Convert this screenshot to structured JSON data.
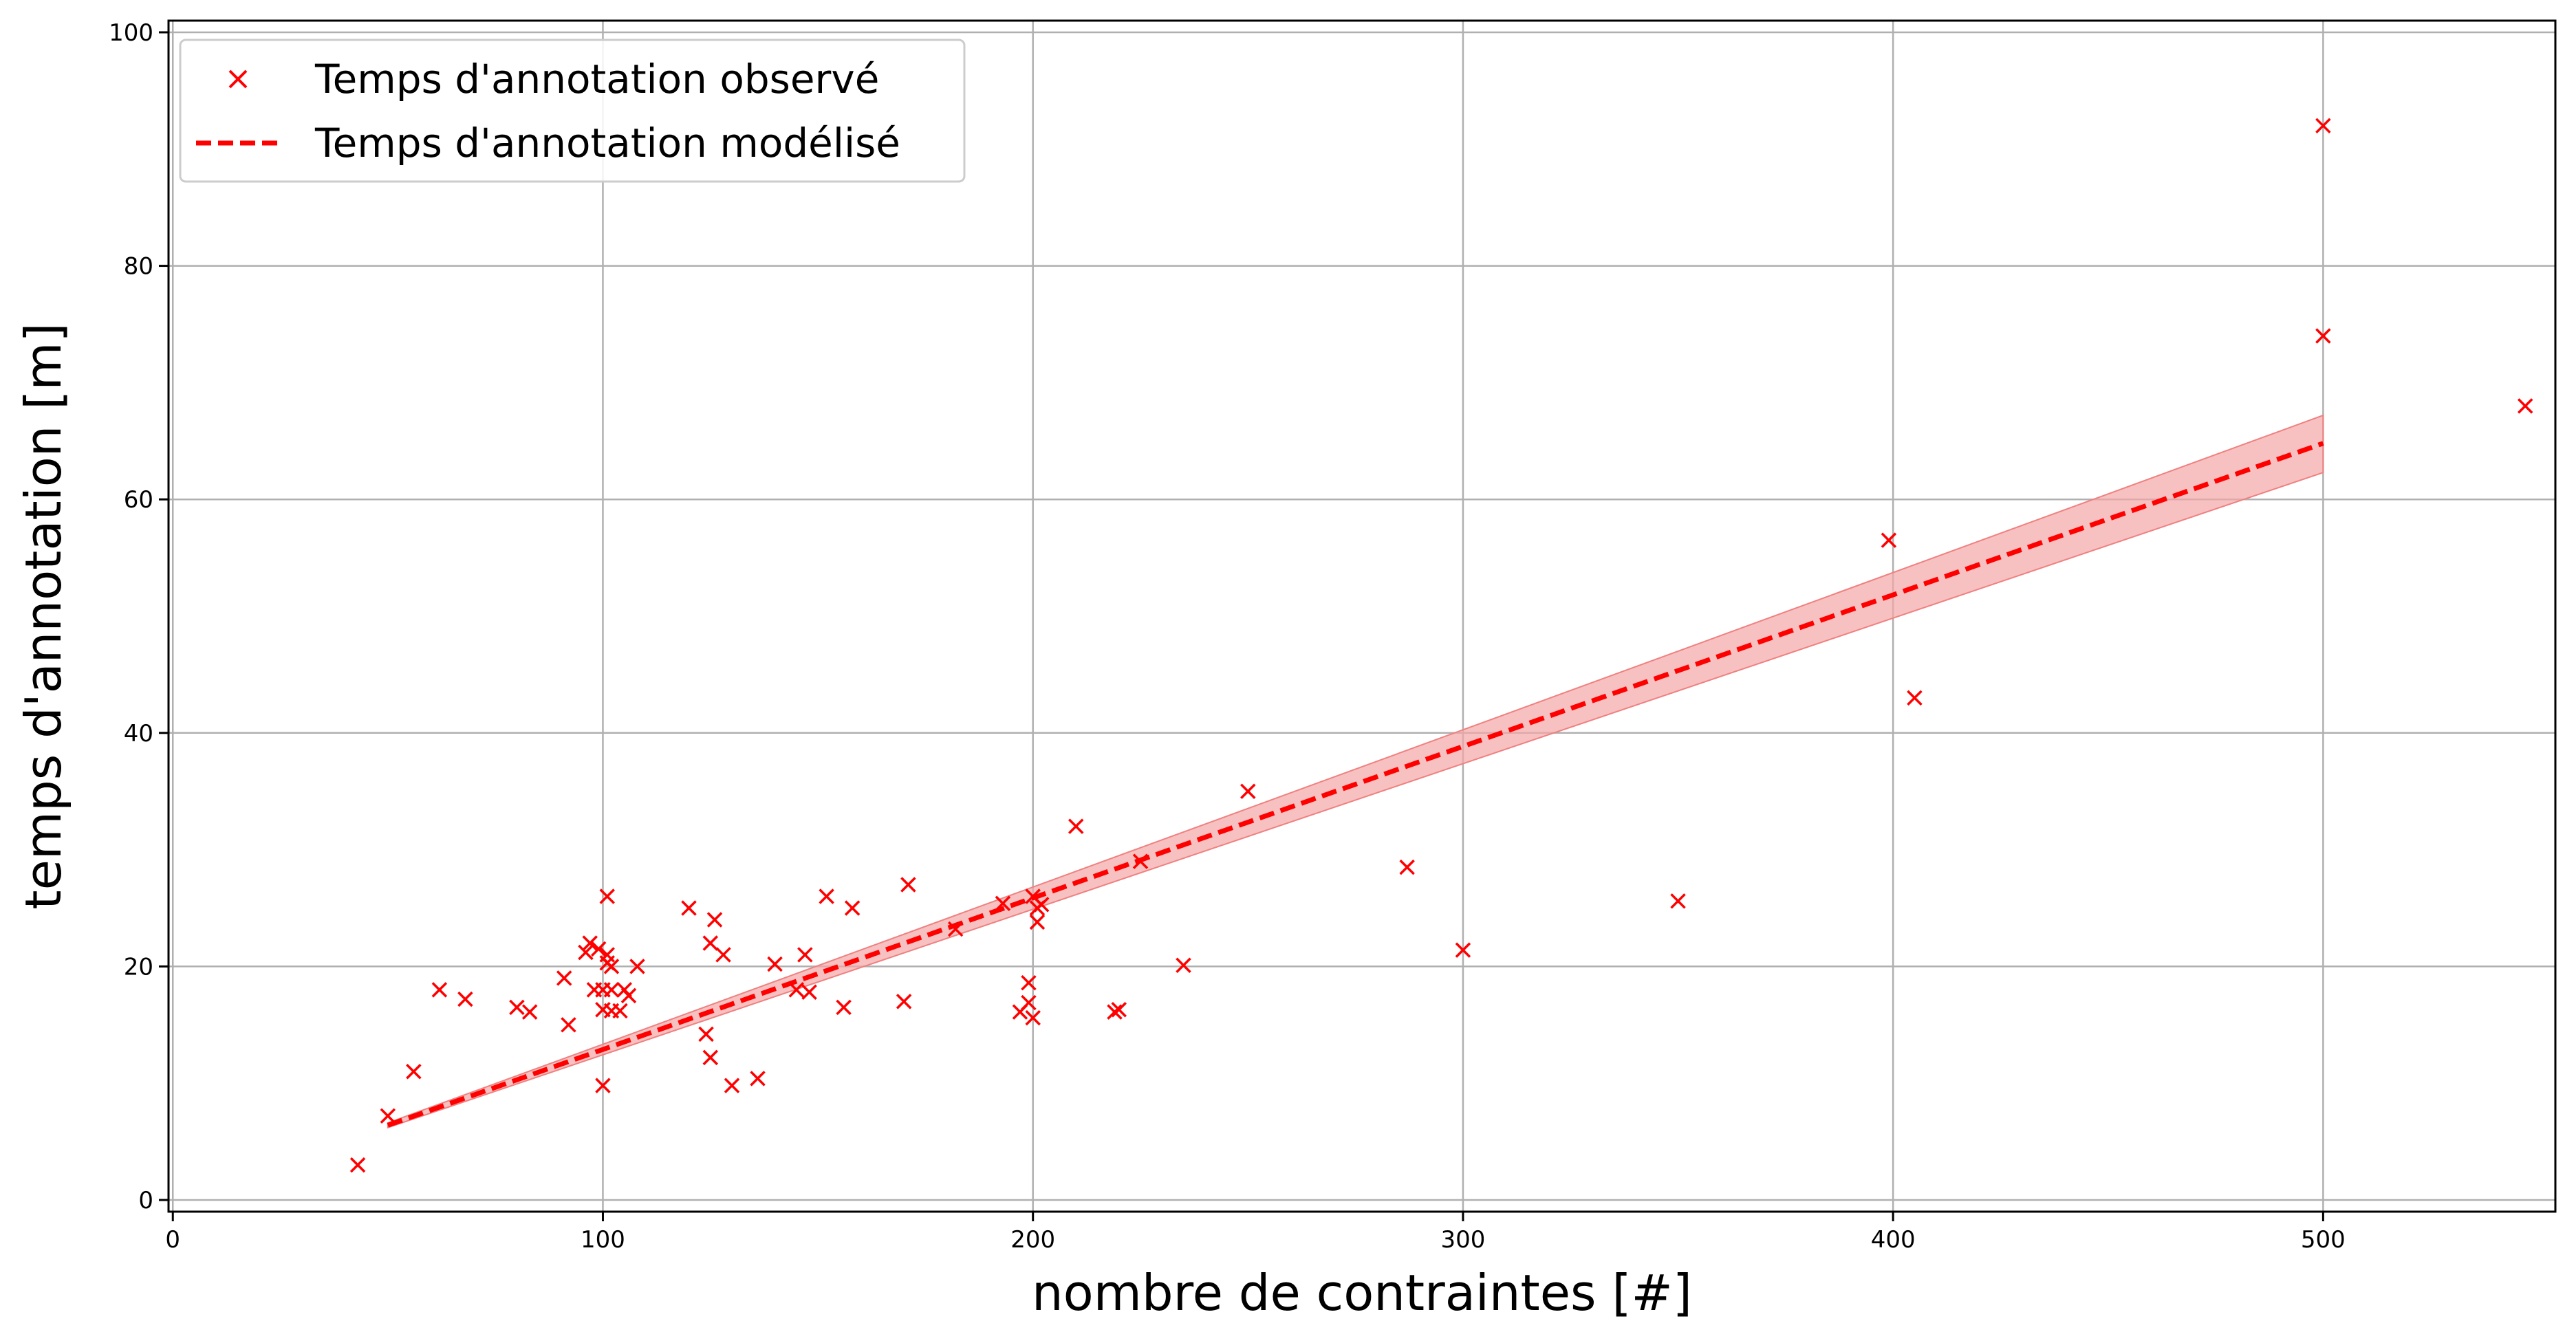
{
  "chart_data": {
    "type": "scatter",
    "xlabel": "nombre de contraintes [#]",
    "ylabel": "temps d'annotation [m]",
    "xlim": [
      -1,
      554
    ],
    "ylim": [
      -1,
      101
    ],
    "xticks": [
      0,
      100,
      200,
      300,
      400,
      500
    ],
    "yticks": [
      0,
      20,
      40,
      60,
      80,
      100
    ],
    "grid": true,
    "legend_position": "top-left",
    "series": [
      {
        "name": "Temps d'annotation observé",
        "kind": "scatter",
        "marker": "x",
        "color": "#ff0000",
        "points": [
          [
            43,
            3
          ],
          [
            50,
            7.2
          ],
          [
            56,
            11
          ],
          [
            62,
            18
          ],
          [
            68,
            17.2
          ],
          [
            80,
            16.5
          ],
          [
            83,
            16.1
          ],
          [
            91,
            19
          ],
          [
            92,
            15
          ],
          [
            96,
            21.2
          ],
          [
            97,
            22
          ],
          [
            98,
            18
          ],
          [
            99,
            21.5
          ],
          [
            100,
            9.8
          ],
          [
            100,
            16.3
          ],
          [
            100,
            18
          ],
          [
            101,
            26
          ],
          [
            101,
            21
          ],
          [
            101,
            20.3
          ],
          [
            102,
            16.2
          ],
          [
            102,
            20
          ],
          [
            102,
            18
          ],
          [
            104,
            16.2
          ],
          [
            105,
            18
          ],
          [
            106,
            17.5
          ],
          [
            108,
            20
          ],
          [
            120,
            25
          ],
          [
            124,
            14.2
          ],
          [
            125,
            22
          ],
          [
            125,
            12.2
          ],
          [
            126,
            24
          ],
          [
            128,
            21
          ],
          [
            130,
            9.8
          ],
          [
            136,
            10.4
          ],
          [
            140,
            20.2
          ],
          [
            145,
            18
          ],
          [
            147,
            21
          ],
          [
            148,
            17.8
          ],
          [
            152,
            26
          ],
          [
            156,
            16.5
          ],
          [
            158,
            25
          ],
          [
            170,
            17
          ],
          [
            171,
            27
          ],
          [
            182,
            23.2
          ],
          [
            193,
            25.4
          ],
          [
            197,
            16.1
          ],
          [
            199,
            16.9
          ],
          [
            199,
            18.6
          ],
          [
            200,
            15.6
          ],
          [
            200,
            26
          ],
          [
            201,
            23.8
          ],
          [
            201,
            25
          ],
          [
            202,
            25.3
          ],
          [
            210,
            32
          ],
          [
            219,
            16.1
          ],
          [
            220,
            16.3
          ],
          [
            225,
            29
          ],
          [
            235,
            20.1
          ],
          [
            250,
            35
          ],
          [
            287,
            28.5
          ],
          [
            300,
            21.4
          ],
          [
            350,
            25.6
          ],
          [
            399,
            56.5
          ],
          [
            405,
            43
          ],
          [
            500,
            92
          ],
          [
            500,
            74
          ],
          [
            547,
            68
          ]
        ]
      },
      {
        "name": "Temps d'annotation modélisé",
        "kind": "line",
        "style": "dashed",
        "color": "#ff0000",
        "x": [
          50,
          500
        ],
        "y": [
          6.4,
          64.8
        ],
        "band_lower": [
          6.2,
          62.3
        ],
        "band_upper": [
          6.6,
          67.2
        ],
        "band_color": "#f4a6a6"
      }
    ]
  }
}
